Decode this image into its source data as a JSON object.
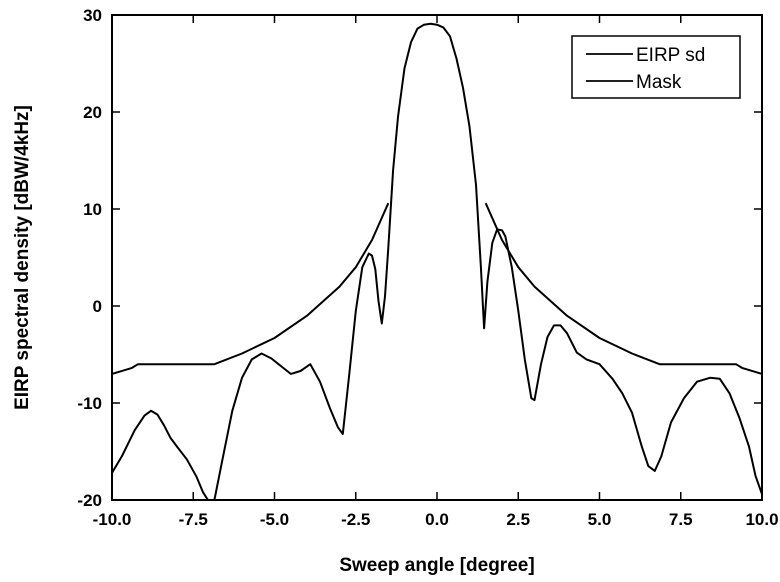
{
  "chart_data": {
    "type": "line",
    "title": "",
    "xlabel": "Sweep angle [degree]",
    "ylabel": "EIRP spectral density [dBW/4kHz]",
    "xlim": [
      -10,
      10
    ],
    "ylim": [
      -20,
      30
    ],
    "xticks": [
      -10,
      -7.5,
      -5,
      -2.5,
      0,
      2.5,
      5,
      7.5,
      10
    ],
    "xtick_labels": [
      "-10.0",
      "-7.5",
      "-5.0",
      "-2.5",
      "0.0",
      "2.5",
      "5.0",
      "7.5",
      "10.0"
    ],
    "yticks": [
      -20,
      -10,
      0,
      10,
      20,
      30
    ],
    "ytick_labels": [
      "-20",
      "-10",
      "0",
      "10",
      "20",
      "30"
    ],
    "legend_position": "top-right",
    "grid": false,
    "series": [
      {
        "name": "EIRP sd",
        "color": "#000000",
        "segments": [
          {
            "x": [
              -10,
              -9.7,
              -9.3,
              -9.0,
              -8.8,
              -8.6,
              -8.4,
              -8.2,
              -8.0,
              -7.7,
              -7.4,
              -7.2,
              -7.05
            ],
            "y": [
              -17.2,
              -15.5,
              -12.8,
              -11.3,
              -10.8,
              -11.2,
              -12.3,
              -13.6,
              -14.5,
              -15.8,
              -17.6,
              -19.2,
              -20
            ]
          },
          {
            "x": [
              -6.85,
              -6.6,
              -6.3,
              -6.0,
              -5.7,
              -5.4,
              -5.1,
              -4.8,
              -4.5,
              -4.2,
              -3.9,
              -3.6,
              -3.3,
              -3.05,
              -2.9,
              -2.7,
              -2.5,
              -2.3,
              -2.1,
              -2.0,
              -1.9,
              -1.8,
              -1.7,
              -1.6,
              -1.5,
              -1.35,
              -1.2,
              -1.0,
              -0.8,
              -0.6,
              -0.4,
              -0.2,
              0,
              0.2,
              0.4,
              0.6,
              0.8,
              1.0,
              1.2,
              1.35,
              1.45,
              1.55,
              1.7,
              1.85,
              2.0,
              2.1,
              2.3,
              2.5,
              2.7,
              2.9,
              3.0,
              3.2,
              3.4,
              3.6,
              3.8,
              4.0,
              4.3,
              4.6,
              5.0,
              5.4,
              5.7,
              6.0,
              6.3,
              6.5,
              6.7,
              6.9,
              7.2,
              7.6,
              8.0,
              8.4,
              8.7,
              9.0,
              9.3,
              9.6,
              9.8,
              10.0
            ],
            "y": [
              -20,
              -15.8,
              -10.8,
              -7.4,
              -5.5,
              -4.9,
              -5.4,
              -6.2,
              -7.0,
              -6.7,
              -6.0,
              -7.8,
              -10.5,
              -12.5,
              -13.2,
              -7.0,
              -0.5,
              4.0,
              5.4,
              5.2,
              3.8,
              0.5,
              -1.8,
              1.0,
              6.0,
              14.0,
              19.5,
              24.5,
              27.2,
              28.6,
              29.0,
              29.1,
              29.0,
              28.7,
              27.8,
              25.5,
              22.5,
              18.5,
              12.5,
              4.0,
              -2.3,
              2.5,
              6.5,
              7.9,
              7.8,
              7.2,
              4.0,
              -0.5,
              -5.5,
              -9.5,
              -9.7,
              -6.0,
              -3.2,
              -2.0,
              -2.0,
              -2.8,
              -4.8,
              -5.5,
              -6.0,
              -7.5,
              -9.0,
              -11.0,
              -14.5,
              -16.5,
              -17.0,
              -15.5,
              -12.0,
              -9.5,
              -7.8,
              -7.4,
              -7.5,
              -9.0,
              -11.5,
              -14.5,
              -17.5,
              -19.4
            ]
          }
        ]
      },
      {
        "name": "Mask",
        "color": "#000000",
        "segments": [
          {
            "x": [
              -10,
              -9.4,
              -9.2,
              -6.85,
              -6.0,
              -5.0,
              -4.0,
              -3.0,
              -2.5,
              -2.0,
              -1.5
            ],
            "y": [
              -7.0,
              -6.4,
              -6.0,
              -6.0,
              -4.9,
              -3.3,
              -1.0,
              2.0,
              4.0,
              6.8,
              10.6
            ]
          },
          {
            "x": [
              1.5,
              2.0,
              2.5,
              3.0,
              4.0,
              5.0,
              6.0,
              6.85,
              9.2,
              9.4,
              10
            ],
            "y": [
              10.6,
              6.8,
              4.0,
              2.0,
              -1.0,
              -3.3,
              -4.9,
              -6.0,
              -6.0,
              -6.4,
              -7.0
            ]
          }
        ]
      }
    ]
  }
}
